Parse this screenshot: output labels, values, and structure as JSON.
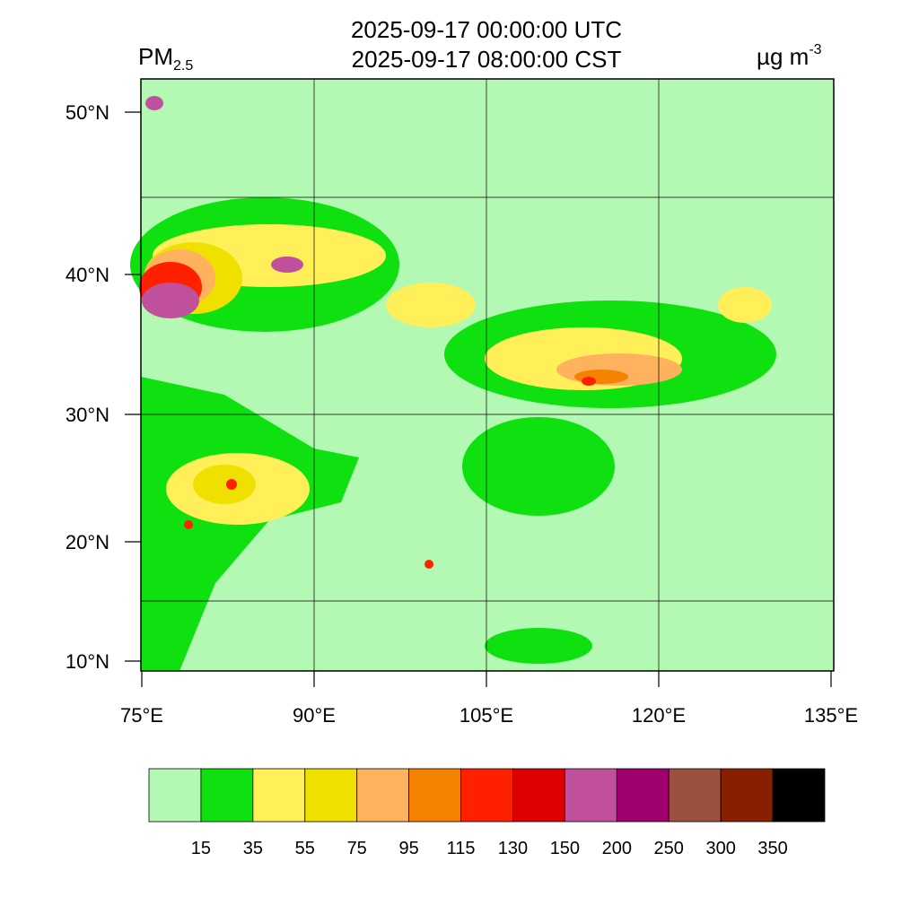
{
  "header": {
    "title_lines": [
      "2025-09-17 00:00:00 UTC",
      "2025-09-17 08:00:00 CST"
    ],
    "variable": "PM",
    "variable_sub": "2.5",
    "units": "µg m",
    "units_sup": "-3"
  },
  "axes": {
    "lat_labels": [
      "50°N",
      "40°N",
      "30°N",
      "20°N",
      "10°N"
    ],
    "lon_labels": [
      "75°E",
      "90°E",
      "105°E",
      "120°E",
      "135°E"
    ]
  },
  "colorbar": {
    "colors": [
      "#b3f9b3",
      "#0fe00f",
      "#fff05a",
      "#f0e000",
      "#ffb25e",
      "#f58200",
      "#ff2000",
      "#dc0000",
      "#c0509c",
      "#a0006e",
      "#9c5040",
      "#882000",
      "#000000"
    ],
    "levels": [
      15,
      35,
      55,
      75,
      95,
      115,
      130,
      150,
      200,
      250,
      300,
      350
    ]
  }
}
